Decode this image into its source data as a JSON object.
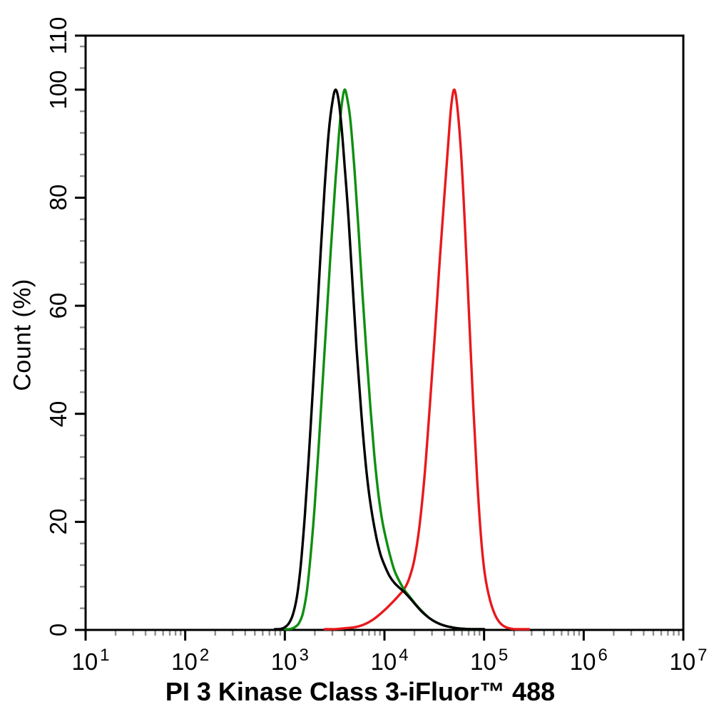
{
  "figure": {
    "kind": "flow-cytometry-overlay-histogram",
    "background_color": "#ffffff"
  },
  "chart_data": {
    "type": "line",
    "title": "",
    "xlabel": "PI 3 Kinase Class 3-iFluor™ 488",
    "ylabel": "Count (%)",
    "x_scale": "log10",
    "xlim_log10": [
      1,
      7
    ],
    "ylim": [
      0,
      110
    ],
    "grid": false,
    "legend": null,
    "x_tick_base": "10",
    "x_major_tick_exponents": [
      1,
      2,
      3,
      4,
      5,
      6,
      7
    ],
    "x_minor_tick_mantissas": [
      2,
      3,
      4,
      5,
      6,
      7,
      8,
      9
    ],
    "y_major_ticks": [
      0,
      20,
      40,
      60,
      80,
      100,
      110
    ],
    "y_minor_tick_step": 4,
    "colors": {
      "axis": "#000000",
      "major_tick": "#000000",
      "minor_tick": "#8f8f8f",
      "background": "#ffffff"
    },
    "series": [
      {
        "name": "red-curve",
        "color": "#e8191d",
        "peak_log10_x": 4.7,
        "peak_x_approx": 50000,
        "peak_y": 100,
        "points": [
          [
            3.4,
            0.05
          ],
          [
            3.5,
            0.15
          ],
          [
            3.6,
            0.3
          ],
          [
            3.7,
            0.5
          ],
          [
            3.78,
            0.9
          ],
          [
            3.84,
            1.4
          ],
          [
            3.9,
            2.1
          ],
          [
            3.96,
            3.0
          ],
          [
            4.02,
            4.0
          ],
          [
            4.08,
            5.1
          ],
          [
            4.14,
            6.3
          ],
          [
            4.2,
            7.6
          ],
          [
            4.25,
            9.6
          ],
          [
            4.3,
            13
          ],
          [
            4.35,
            19
          ],
          [
            4.4,
            28
          ],
          [
            4.45,
            40
          ],
          [
            4.5,
            53
          ],
          [
            4.55,
            67
          ],
          [
            4.6,
            80
          ],
          [
            4.64,
            90
          ],
          [
            4.67,
            97
          ],
          [
            4.7,
            100
          ],
          [
            4.73,
            97
          ],
          [
            4.77,
            88
          ],
          [
            4.81,
            74
          ],
          [
            4.85,
            58
          ],
          [
            4.89,
            42
          ],
          [
            4.93,
            28
          ],
          [
            4.97,
            17
          ],
          [
            5.01,
            10
          ],
          [
            5.06,
            5.5
          ],
          [
            5.11,
            2.8
          ],
          [
            5.16,
            1.3
          ],
          [
            5.22,
            0.5
          ],
          [
            5.3,
            0.15
          ],
          [
            5.4,
            0.05
          ],
          [
            5.45,
            0
          ]
        ]
      },
      {
        "name": "green-curve",
        "color": "#0f8f0f",
        "peak_log10_x": 3.6,
        "peak_x_approx": 3900,
        "peak_y": 100,
        "points": [
          [
            3.0,
            0
          ],
          [
            3.06,
            0.2
          ],
          [
            3.1,
            0.5
          ],
          [
            3.14,
            1.2
          ],
          [
            3.18,
            3
          ],
          [
            3.22,
            7
          ],
          [
            3.26,
            14
          ],
          [
            3.3,
            23
          ],
          [
            3.34,
            34
          ],
          [
            3.38,
            46
          ],
          [
            3.42,
            58
          ],
          [
            3.46,
            70
          ],
          [
            3.5,
            81
          ],
          [
            3.54,
            91
          ],
          [
            3.57,
            97
          ],
          [
            3.6,
            100
          ],
          [
            3.63,
            98
          ],
          [
            3.66,
            94
          ],
          [
            3.7,
            85
          ],
          [
            3.74,
            74
          ],
          [
            3.78,
            62
          ],
          [
            3.82,
            51
          ],
          [
            3.86,
            41
          ],
          [
            3.9,
            32
          ],
          [
            3.94,
            25
          ],
          [
            3.98,
            20
          ],
          [
            4.02,
            16.5
          ],
          [
            4.06,
            13.5
          ],
          [
            4.1,
            11
          ],
          [
            4.15,
            9
          ],
          [
            4.2,
            7.4
          ],
          [
            4.26,
            6.0
          ],
          [
            4.32,
            4.6
          ],
          [
            4.38,
            3.4
          ],
          [
            4.45,
            2.2
          ],
          [
            4.52,
            1.4
          ],
          [
            4.6,
            0.8
          ],
          [
            4.7,
            0.4
          ],
          [
            4.8,
            0.2
          ],
          [
            4.9,
            0.1
          ],
          [
            5.0,
            0
          ]
        ]
      },
      {
        "name": "black-curve",
        "color": "#000000",
        "peak_log10_x": 3.51,
        "peak_x_approx": 3300,
        "peak_y": 100,
        "points": [
          [
            2.9,
            0
          ],
          [
            2.96,
            0.2
          ],
          [
            3.0,
            0.5
          ],
          [
            3.04,
            1.2
          ],
          [
            3.08,
            2.8
          ],
          [
            3.12,
            6
          ],
          [
            3.16,
            12
          ],
          [
            3.2,
            21
          ],
          [
            3.24,
            32
          ],
          [
            3.28,
            44
          ],
          [
            3.32,
            57
          ],
          [
            3.36,
            70
          ],
          [
            3.4,
            82
          ],
          [
            3.44,
            92
          ],
          [
            3.48,
            98
          ],
          [
            3.51,
            100
          ],
          [
            3.54,
            98
          ],
          [
            3.57,
            93
          ],
          [
            3.6,
            86
          ],
          [
            3.64,
            76
          ],
          [
            3.68,
            64
          ],
          [
            3.72,
            52
          ],
          [
            3.76,
            42
          ],
          [
            3.8,
            33
          ],
          [
            3.84,
            26
          ],
          [
            3.88,
            21
          ],
          [
            3.92,
            17
          ],
          [
            3.96,
            14
          ],
          [
            4.0,
            12
          ],
          [
            4.05,
            10
          ],
          [
            4.1,
            8.7
          ],
          [
            4.15,
            7.8
          ],
          [
            4.2,
            7.0
          ],
          [
            4.26,
            5.8
          ],
          [
            4.32,
            4.5
          ],
          [
            4.38,
            3.3
          ],
          [
            4.45,
            2.2
          ],
          [
            4.52,
            1.4
          ],
          [
            4.6,
            0.8
          ],
          [
            4.7,
            0.4
          ],
          [
            4.8,
            0.2
          ],
          [
            4.9,
            0.1
          ],
          [
            5.0,
            0
          ]
        ]
      }
    ]
  }
}
